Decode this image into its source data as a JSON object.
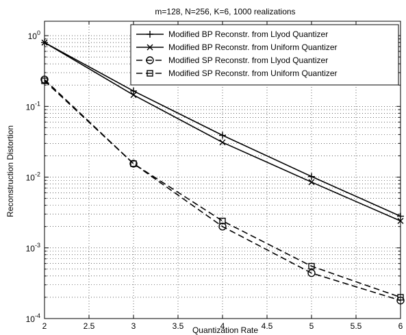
{
  "chart_data": {
    "type": "line",
    "title": "m=128, N=256, K=6, 1000 realizations",
    "xlabel": "Quantization Rate",
    "ylabel": "Reconstruction Distortion",
    "x": [
      2,
      3,
      4,
      5,
      6
    ],
    "xlim": [
      2,
      6
    ],
    "ylim": [
      0.0001,
      1.6
    ],
    "yscale": "log",
    "grid": true,
    "legend_position": "top-right",
    "x_ticks": [
      "2",
      "2.5",
      "3",
      "3.5",
      "4",
      "4.5",
      "5",
      "5.5",
      "6"
    ],
    "y_tick_values": [
      0.0001,
      0.001,
      0.01,
      0.1,
      1
    ],
    "y_tick_mantissa": "10",
    "y_tick_exponents": [
      "-4",
      "-3",
      "-2",
      "-1",
      "0"
    ],
    "series": [
      {
        "name": "Modified BP Reconstr. from Llyod Quantizer",
        "values": [
          0.8,
          0.165,
          0.039,
          0.0102,
          0.0028
        ],
        "dash": "solid",
        "marker": "plus",
        "color": "#000000"
      },
      {
        "name": "Modified BP Reconstr. from Uniform Quantizer",
        "values": [
          0.8,
          0.145,
          0.031,
          0.0085,
          0.0024
        ],
        "dash": "solid",
        "marker": "x",
        "color": "#000000"
      },
      {
        "name": "Modified SP Reconstr. from Llyod Quantizer",
        "values": [
          0.24,
          0.0155,
          0.002,
          0.00044,
          0.00018
        ],
        "dash": "dashed",
        "marker": "circle",
        "color": "#000000"
      },
      {
        "name": "Modified SP Reconstr. from Uniform Quantizer",
        "values": [
          0.23,
          0.0155,
          0.0024,
          0.00055,
          0.0002
        ],
        "dash": "dashed",
        "marker": "square",
        "color": "#000000"
      }
    ]
  }
}
